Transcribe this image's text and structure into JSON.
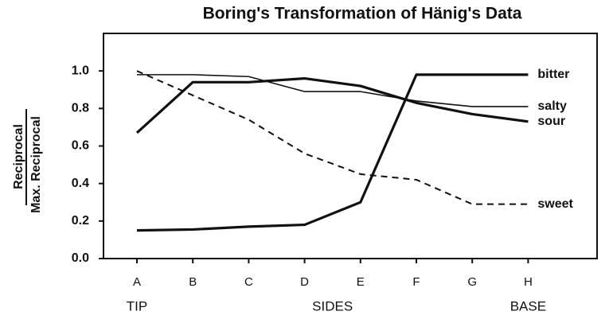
{
  "chart_data": {
    "type": "line",
    "title": "Boring's Transformation of Hänig's Data",
    "y_label_numerator": "Reciprocal",
    "y_label_denominator": "Max. Reciprocal",
    "categories": [
      "A",
      "B",
      "C",
      "D",
      "E",
      "F",
      "G",
      "H"
    ],
    "x_sublabels": [
      "TIP",
      "SIDES",
      "BASE"
    ],
    "ylim": [
      0,
      1.2
    ],
    "yticks": [
      {
        "value": 0,
        "label": "0.0"
      },
      0.2,
      0.4,
      0.6,
      0.8,
      {
        "value": 1,
        "label": "1.0"
      }
    ],
    "grid": false,
    "series": [
      {
        "name": "bitter",
        "color": "#111111",
        "style": "solid",
        "line_width": 3.2,
        "values": [
          0.15,
          0.155,
          0.17,
          0.18,
          0.3,
          0.98,
          0.98,
          0.98
        ]
      },
      {
        "name": "salty",
        "color": "#111111",
        "style": "solid",
        "line_width": 1.6,
        "values": [
          0.98,
          0.98,
          0.97,
          0.89,
          0.89,
          0.84,
          0.81,
          0.81
        ]
      },
      {
        "name": "sour",
        "color": "#111111",
        "style": "solid",
        "line_width": 3.2,
        "values": [
          0.67,
          0.94,
          0.94,
          0.96,
          0.92,
          0.83,
          0.77,
          0.73
        ]
      },
      {
        "name": "sweet",
        "color": "#111111",
        "style": "dashed",
        "line_width": 2,
        "values": [
          1.0,
          0.87,
          0.74,
          0.56,
          0.45,
          0.42,
          0.29,
          0.29
        ]
      }
    ]
  }
}
